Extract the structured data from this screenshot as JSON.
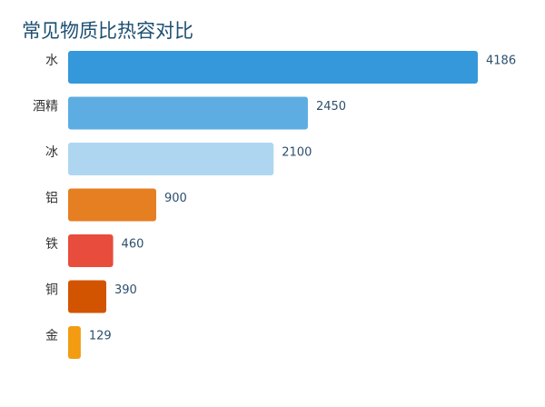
{
  "chart_data": {
    "type": "bar",
    "orientation": "horizontal",
    "title": "常见物质比热容对比",
    "categories": [
      "水",
      "酒精",
      "冰",
      "铝",
      "铁",
      "铜",
      "金"
    ],
    "values": [
      4186,
      2450,
      2100,
      900,
      460,
      390,
      129
    ],
    "colors": [
      "#3498db",
      "#5dade2",
      "#aed6f1",
      "#e67e22",
      "#e74c3c",
      "#d35400",
      "#f39c12"
    ],
    "xlim": [
      0,
      4186
    ],
    "grid": false,
    "legend": "none"
  }
}
